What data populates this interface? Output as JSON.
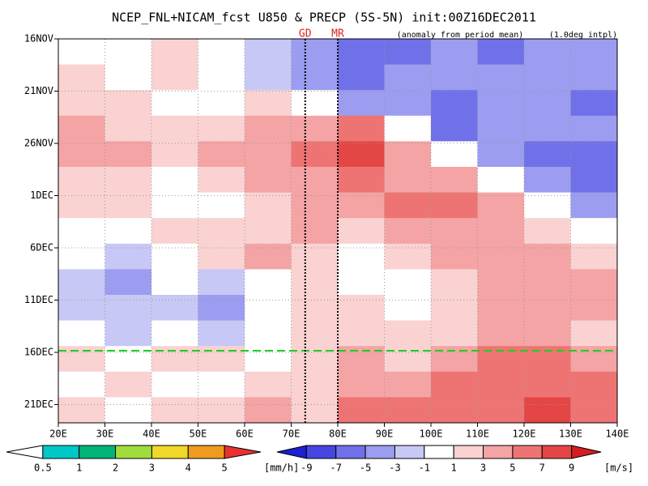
{
  "chart_data": {
    "type": "hovmoller",
    "title": "NCEP_FNL+NICAM_fcst U850 & PRECP (5S-5N) init:00Z16DEC2011",
    "subtitle": "(anomaly from period mean)",
    "note": "(1.0deg intpl)",
    "xlim": [
      20,
      140
    ],
    "xticks": [
      {
        "value": 20,
        "label": "20E"
      },
      {
        "value": 30,
        "label": "30E"
      },
      {
        "value": 40,
        "label": "40E"
      },
      {
        "value": 50,
        "label": "50E"
      },
      {
        "value": 60,
        "label": "60E"
      },
      {
        "value": 70,
        "label": "70E"
      },
      {
        "value": 80,
        "label": "80E"
      },
      {
        "value": 90,
        "label": "90E"
      },
      {
        "value": 100,
        "label": "100E"
      },
      {
        "value": 110,
        "label": "110E"
      },
      {
        "value": 120,
        "label": "120E"
      },
      {
        "value": 130,
        "label": "130E"
      },
      {
        "value": 140,
        "label": "140E"
      }
    ],
    "yticks": [
      "16NOV",
      "21NOV",
      "26NOV",
      "1DEC",
      "6DEC",
      "11DEC",
      "16DEC",
      "21DEC"
    ],
    "markers": [
      {
        "label": "GD",
        "x": 73
      },
      {
        "label": "MR",
        "x": 80
      }
    ],
    "z": [
      [
        0,
        0,
        2,
        0,
        -2,
        -4,
        -6,
        -6,
        -4,
        -6,
        -4,
        -4
      ],
      [
        2,
        0,
        2,
        0,
        -2,
        -4,
        -6,
        -4,
        -4,
        -4,
        -4,
        -4
      ],
      [
        2,
        2,
        0,
        0,
        2,
        0,
        -4,
        -4,
        -6,
        -4,
        -4,
        -6
      ],
      [
        4,
        2,
        2,
        2,
        4,
        4,
        6,
        0,
        -6,
        -4,
        -4,
        -4
      ],
      [
        4,
        4,
        2,
        4,
        4,
        6,
        8,
        4,
        0,
        -4,
        -6,
        -6
      ],
      [
        2,
        2,
        0,
        2,
        4,
        4,
        6,
        4,
        4,
        0,
        -4,
        -6
      ],
      [
        2,
        2,
        0,
        0,
        2,
        4,
        4,
        6,
        6,
        4,
        0,
        -4
      ],
      [
        0,
        0,
        2,
        2,
        2,
        4,
        2,
        4,
        4,
        4,
        2,
        0
      ],
      [
        0,
        -2,
        0,
        2,
        4,
        2,
        0,
        2,
        4,
        4,
        4,
        2
      ],
      [
        -2,
        -4,
        0,
        -2,
        0,
        2,
        0,
        0,
        2,
        4,
        4,
        4
      ],
      [
        -2,
        -2,
        -2,
        -4,
        0,
        2,
        2,
        0,
        2,
        4,
        4,
        4
      ],
      [
        0,
        -2,
        0,
        -2,
        0,
        2,
        2,
        2,
        2,
        4,
        4,
        2
      ],
      [
        2,
        0,
        2,
        2,
        0,
        2,
        4,
        2,
        4,
        6,
        6,
        4
      ],
      [
        0,
        2,
        0,
        0,
        2,
        2,
        4,
        4,
        6,
        6,
        6,
        6
      ],
      [
        2,
        0,
        2,
        2,
        4,
        2,
        6,
        6,
        6,
        6,
        8,
        6
      ]
    ],
    "precip_colorbar": {
      "ticks": [
        0.5,
        1,
        2,
        3,
        4,
        5
      ],
      "unit": "[mm/h]",
      "colors": [
        "#ffffff",
        "#00c8c8",
        "#00b47a",
        "#a0dc3c",
        "#f0d828",
        "#f09a1e",
        "#e83232"
      ]
    },
    "wind_colorbar": {
      "ticks": [
        -9,
        -7,
        -5,
        -3,
        -1,
        1,
        3,
        5,
        7,
        9
      ],
      "unit": "[m/s]",
      "colors": [
        "#1e1ed2",
        "#4646e0",
        "#7070e8",
        "#9c9cf0",
        "#c8c8f6",
        "#ffffff",
        "#fad2d2",
        "#f4a4a4",
        "#ee7474",
        "#e44646",
        "#d41e1e"
      ]
    }
  }
}
